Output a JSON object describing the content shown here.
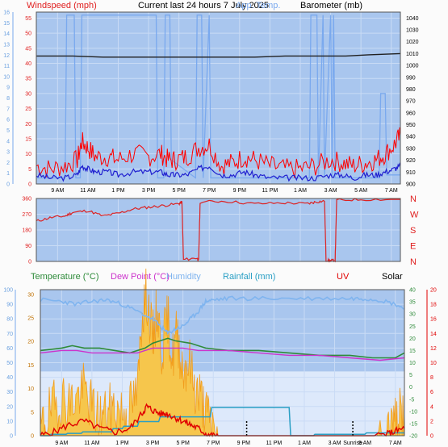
{
  "header": {
    "title": "Current last 24 hours 7 July 2025",
    "windspeed_label": "Windspeed (mph)",
    "apptemp_label": "App. Temp.",
    "barometer_label": "Barometer (mb)"
  },
  "legend": {
    "temperature": "Temperature (°C)",
    "dewpoint": "Dew Point (°C)",
    "humidity": "Humidity",
    "rainfall": "Rainfall (mm)",
    "uv": "UV",
    "solar": "Solar",
    "sunrise": "Sunrise"
  },
  "colors": {
    "panel": "#a9c6ee",
    "panel_light": "#dde9fb",
    "windgust": "#ff0000",
    "windavg": "#2020d0",
    "barometer": "#202020",
    "apptemp": "#7aa9ee",
    "direction": "#dd2222",
    "temperature": "#2e8b3a",
    "dewpoint": "#cc33cc",
    "humidity": "#7fb4ef",
    "rainfall": "#2a9fc4",
    "uv": "#e00000",
    "solar": "#f29d1c"
  },
  "chart_data": [
    {
      "type": "line",
      "name": "wind-barometer",
      "x_ticks": [
        "9 AM",
        "11 AM",
        "1 PM",
        "3 PM",
        "5 PM",
        "7 PM",
        "9 PM",
        "11 PM",
        "1 AM",
        "3 AM",
        "5 AM",
        "7 AM"
      ],
      "y_left_ticks": [
        "0",
        "5",
        "10",
        "15",
        "20",
        "25",
        "30",
        "35",
        "40",
        "45",
        "50",
        "55"
      ],
      "y_left_range": [
        0,
        57
      ],
      "y_left_beaufort_ticks": [
        "0",
        "1",
        "2",
        "3",
        "4",
        "5",
        "6",
        "7",
        "8",
        "9",
        "10",
        "11",
        "12",
        "13",
        "14",
        "15",
        "16"
      ],
      "y_right_ticks": [
        "900",
        "910",
        "920",
        "930",
        "940",
        "950",
        "960",
        "970",
        "980",
        "990",
        "1000",
        "1010",
        "1020",
        "1030",
        "1040"
      ],
      "y_right_range": [
        900,
        1045
      ],
      "x_hours_range": [
        7.6,
        31.6
      ],
      "series": [
        {
          "key": "gust",
          "unit": "mph",
          "x": [
            7.6,
            8.5,
            9.5,
            10.3,
            10.6,
            11.0,
            11.5,
            12.3,
            13.0,
            14.0,
            15.0,
            15.8,
            16.3,
            16.8,
            17.5,
            18.3,
            19.0,
            19.8,
            20.5,
            21.3,
            22.0,
            23.0,
            24.0,
            25.0,
            26.0,
            27.0,
            27.8,
            28.5,
            29.3,
            30.0,
            30.6,
            31.2,
            31.6
          ],
          "y": [
            6,
            5,
            6,
            8,
            14,
            12,
            9,
            9,
            8,
            10,
            9,
            10,
            8,
            8,
            9,
            12,
            13,
            6,
            7,
            9,
            8,
            6,
            5,
            5,
            6,
            8,
            7,
            6,
            7,
            8,
            10,
            13,
            16
          ]
        },
        {
          "key": "avg",
          "unit": "mph",
          "x": [
            7.6,
            8.5,
            9.5,
            10.3,
            10.6,
            11.0,
            11.5,
            12.3,
            13.0,
            14.0,
            15.0,
            15.8,
            16.3,
            16.8,
            17.5,
            18.3,
            19.0,
            19.8,
            20.5,
            21.3,
            22.0,
            23.0,
            24.0,
            25.0,
            26.0,
            27.0,
            27.8,
            28.5,
            29.3,
            30.0,
            30.6,
            31.2,
            31.6
          ],
          "y": [
            3,
            2,
            2,
            3,
            6,
            5,
            4,
            4,
            3,
            4,
            4,
            4,
            3,
            3,
            3,
            5,
            6,
            3,
            3,
            4,
            3,
            2,
            2,
            2,
            2,
            3,
            3,
            2,
            3,
            3,
            4,
            5,
            6
          ]
        },
        {
          "key": "barometer",
          "unit": "mb",
          "x": [
            7.6,
            10,
            12,
            14,
            16,
            18,
            20,
            22,
            24,
            26,
            28,
            29.5,
            31.6
          ],
          "y": [
            1008,
            1008,
            1007,
            1007,
            1007,
            1007,
            1007,
            1007,
            1008,
            1008,
            1008,
            1009,
            1010
          ]
        },
        {
          "key": "apptemp",
          "unit": "°C",
          "x": [
            7.6,
            9.5,
            9.6,
            10.1,
            10.2,
            10.5,
            10.6,
            12.5,
            12.6,
            15.5,
            15.6,
            16.0,
            16.1,
            16.4,
            16.5,
            18.1,
            18.2,
            18.5,
            18.6,
            19.0,
            19.1,
            25.6,
            25.7,
            26.1,
            26.2,
            26.5,
            26.6,
            27.0,
            27.1,
            27.2,
            27.3,
            30.2,
            30.3,
            30.6,
            30.7,
            31.6
          ],
          "y": [
            2,
            2,
            56,
            56,
            2,
            2,
            56,
            56,
            56,
            56,
            2,
            2,
            56,
            56,
            8,
            2,
            56,
            56,
            2,
            56,
            2,
            2,
            56,
            56,
            2,
            56,
            2,
            56,
            2,
            56,
            2,
            2,
            30,
            30,
            3,
            3
          ]
        }
      ]
    },
    {
      "type": "line",
      "name": "wind-direction",
      "y_left_ticks": [
        "0",
        "90",
        "180",
        "270",
        "360"
      ],
      "y_left_range": [
        0,
        360
      ],
      "y_right_ticks": [
        "N",
        "E",
        "S",
        "W",
        "N"
      ],
      "x_hours_range": [
        7.6,
        31.6
      ],
      "series": [
        {
          "key": "direction",
          "unit": "deg",
          "x": [
            7.6,
            8.5,
            9.5,
            10.0,
            11.0,
            12.0,
            13.0,
            14.0,
            15.0,
            16.0,
            17.0,
            17.2,
            17.3,
            18.2,
            18.3,
            18.4,
            20,
            22,
            24,
            25.5,
            26.0,
            26.6,
            26.7,
            27.0,
            27.3,
            27.4,
            29,
            31.6
          ],
          "y": [
            230,
            250,
            260,
            280,
            290,
            260,
            275,
            300,
            310,
            320,
            330,
            340,
            10,
            20,
            5,
            340,
            345,
            330,
            335,
            330,
            340,
            345,
            5,
            5,
            5,
            350,
            355,
            355
          ]
        }
      ]
    },
    {
      "type": "line",
      "name": "temperature-humidity-rain-solar",
      "y_left_outer_ticks": [
        "0",
        "10",
        "20",
        "30",
        "40",
        "50",
        "60",
        "70",
        "80",
        "90",
        "100"
      ],
      "y_left_outer_range": [
        0,
        100
      ],
      "y_left_inner_ticks": [
        "0",
        "5",
        "10",
        "15",
        "20",
        "25",
        "30"
      ],
      "y_left_inner_range": [
        0,
        31
      ],
      "y_right_temp_ticks": [
        "-20",
        "-15",
        "-10",
        "-5",
        "0",
        "5",
        "10",
        "15",
        "20",
        "25",
        "30",
        "35",
        "40"
      ],
      "y_right_temp_range": [
        -20,
        40
      ],
      "y_right_uv_ticks": [
        "0",
        "2",
        "4",
        "6",
        "8",
        "10",
        "12",
        "14",
        "16",
        "18",
        "20"
      ],
      "y_right_uv_range": [
        0,
        20
      ],
      "x_ticks": [
        "9 AM",
        "11 AM",
        "1 PM",
        "3 PM",
        "5 PM",
        "7 PM",
        "9 PM",
        "11 PM",
        "1 AM",
        "3 AM",
        "5 AM",
        "7 AM"
      ],
      "x_hours_range": [
        7.6,
        31.6
      ],
      "series": [
        {
          "key": "humidity",
          "unit": "%",
          "x": [
            7.6,
            9,
            10,
            11,
            12,
            13,
            14,
            15,
            15.5,
            16.0,
            16.5,
            17.0,
            17.5,
            18.0,
            18.5,
            19,
            20,
            22,
            24,
            26,
            28,
            29,
            30,
            31,
            31.6
          ],
          "y": [
            93,
            92,
            90,
            92,
            93,
            90,
            85,
            80,
            75,
            70,
            73,
            75,
            80,
            85,
            92,
            93,
            94,
            94,
            94,
            94,
            94,
            94,
            93,
            90,
            87
          ]
        },
        {
          "key": "temperature",
          "unit": "°C",
          "x": [
            7.6,
            9,
            9.7,
            10.5,
            11.5,
            12.5,
            13.5,
            14.5,
            15.0,
            15.5,
            16.0,
            16.5,
            17.5,
            18.5,
            20,
            22,
            24,
            26,
            28,
            29.5,
            31,
            31.6
          ],
          "y": [
            15,
            16,
            17,
            16,
            16,
            15,
            14,
            16,
            18,
            19,
            20,
            19,
            18,
            16,
            15,
            15,
            14,
            13,
            13,
            12,
            12,
            14
          ]
        },
        {
          "key": "dewpoint",
          "unit": "°C",
          "x": [
            7.6,
            9,
            10,
            11,
            12,
            13,
            14,
            15,
            16,
            17,
            18,
            20,
            22,
            24,
            26,
            28,
            30,
            31.6
          ],
          "y": [
            14,
            15,
            15,
            14,
            14,
            14,
            14,
            16,
            16,
            16,
            15,
            15,
            14,
            13,
            13,
            12,
            11,
            12
          ]
        },
        {
          "key": "rainfall",
          "unit": "mm",
          "x": [
            7.6,
            8.2,
            8.3,
            9.3,
            9.4,
            10.3,
            10.4,
            12.3,
            12.4,
            13.0,
            13.1,
            14.0,
            14.1,
            15.4,
            15.5,
            18.8,
            18.9,
            24.0,
            24.1,
            25.6,
            25.7,
            29.0,
            29.1,
            31.6
          ],
          "y": [
            0,
            0,
            0.3,
            0.3,
            0.5,
            0.5,
            0.8,
            0.8,
            1.5,
            1.5,
            2.0,
            2.0,
            3.0,
            3.0,
            4.0,
            4.0,
            6.0,
            6.0,
            0,
            0,
            0.3,
            0.3,
            0.6,
            0.6
          ]
        },
        {
          "key": "uv",
          "unit": "index",
          "x": [
            7.6,
            8.5,
            9.5,
            10.5,
            11.5,
            12.5,
            13.5,
            14.3,
            14.6,
            15.0,
            15.5,
            16.0,
            16.5,
            17.0,
            17.5,
            18.0,
            18.5,
            19.0,
            19.5,
            28.5,
            29.5,
            30.5,
            31.0,
            31.6
          ],
          "y": [
            0,
            0.5,
            1.5,
            2,
            1,
            0.5,
            1,
            3,
            4,
            3.5,
            3,
            3,
            2.5,
            2,
            1.5,
            1,
            0.3,
            0,
            0,
            0,
            0,
            0.2,
            0.6,
            1.0
          ]
        },
        {
          "key": "solar",
          "unit": "W/m2",
          "x": [
            7.6,
            8.0,
            8.5,
            9.0,
            9.5,
            10.0,
            10.5,
            11.0,
            11.5,
            12.0,
            12.5,
            13.0,
            13.5,
            14.0,
            14.3,
            14.6,
            15.0,
            15.3,
            15.6,
            16.0,
            16.3,
            16.6,
            17.0,
            17.4,
            17.8,
            18.2,
            18.6,
            19.0,
            19.5,
            29.5,
            30.3,
            30.8,
            31.2,
            31.6
          ],
          "y": [
            1,
            4,
            6,
            8,
            7,
            8,
            10,
            6,
            4,
            5,
            6,
            5,
            6,
            9,
            26,
            30,
            20,
            27,
            18,
            25,
            16,
            22,
            14,
            16,
            10,
            8,
            4,
            2,
            0,
            0,
            0.5,
            2,
            4,
            5
          ]
        }
      ],
      "x_markers": [
        21.2,
        28.2
      ]
    }
  ]
}
